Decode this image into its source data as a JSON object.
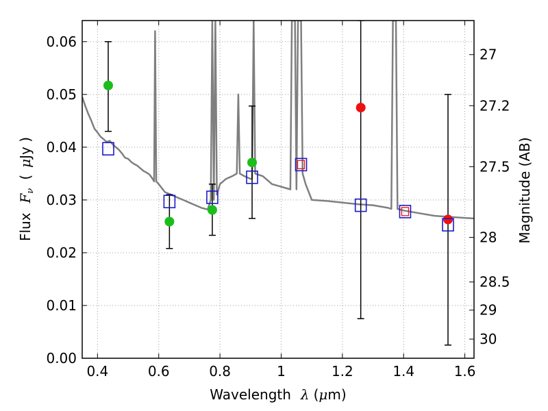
{
  "chart_data": {
    "type": "scatter",
    "title": "",
    "xlabel": {
      "text": "Wavelength",
      "symbol": "λ",
      "unit_open": "(",
      "unit_mu": "μ",
      "unit_rest": "m)"
    },
    "ylabel": {
      "text": "Flux",
      "symbol": "F",
      "subscript": "ν",
      "unit_open": "(",
      "unit_mu": "μ",
      "unit_rest": "Jy )"
    },
    "y2label": "Magnitude (AB)",
    "xlim": [
      0.35,
      1.63
    ],
    "ylim": [
      0.0,
      0.064
    ],
    "grid": true,
    "x_ticks": [
      {
        "value": 0.4,
        "label": "0.4"
      },
      {
        "value": 0.6,
        "label": "0.6"
      },
      {
        "value": 0.8,
        "label": "0.8"
      },
      {
        "value": 1.0,
        "label": "1"
      },
      {
        "value": 1.2,
        "label": "1.2"
      },
      {
        "value": 1.4,
        "label": "1.4"
      },
      {
        "value": 1.6,
        "label": "1.6"
      }
    ],
    "y_ticks": [
      {
        "value": 0.0,
        "label": "0.00"
      },
      {
        "value": 0.01,
        "label": "0.01"
      },
      {
        "value": 0.02,
        "label": "0.02"
      },
      {
        "value": 0.03,
        "label": "0.03"
      },
      {
        "value": 0.04,
        "label": "0.04"
      },
      {
        "value": 0.05,
        "label": "0.05"
      },
      {
        "value": 0.06,
        "label": "0.06"
      }
    ],
    "y2_ticks": [
      {
        "mag": 27,
        "label": "27"
      },
      {
        "mag": 27.2,
        "label": "27.2"
      },
      {
        "mag": 27.5,
        "label": "27.5"
      },
      {
        "mag": 28,
        "label": "28"
      },
      {
        "mag": 28.5,
        "label": "28.5"
      },
      {
        "mag": 29,
        "label": "29"
      },
      {
        "mag": 30,
        "label": "30"
      }
    ],
    "colors": {
      "sed": "#7f7f7f",
      "green_points": "#1bbd1b",
      "red_points": "#ee1111",
      "model_squares": "#1a1acc",
      "red_squares": "#ee1111",
      "errorbars": "#000000",
      "grid": "#999999"
    },
    "sed_model": [
      [
        0.35,
        0.0495
      ],
      [
        0.36,
        0.0478
      ],
      [
        0.37,
        0.0463
      ],
      [
        0.38,
        0.045
      ],
      [
        0.39,
        0.0435
      ],
      [
        0.4,
        0.0428
      ],
      [
        0.41,
        0.042
      ],
      [
        0.42,
        0.0415
      ],
      [
        0.43,
        0.041
      ],
      [
        0.44,
        0.0412
      ],
      [
        0.45,
        0.0405
      ],
      [
        0.46,
        0.04
      ],
      [
        0.47,
        0.0395
      ],
      [
        0.48,
        0.0388
      ],
      [
        0.49,
        0.038
      ],
      [
        0.5,
        0.0378
      ],
      [
        0.51,
        0.0372
      ],
      [
        0.52,
        0.0368
      ],
      [
        0.53,
        0.0365
      ],
      [
        0.54,
        0.036
      ],
      [
        0.55,
        0.0355
      ],
      [
        0.56,
        0.0352
      ],
      [
        0.57,
        0.0348
      ],
      [
        0.58,
        0.034
      ],
      [
        0.585,
        0.0335
      ],
      [
        0.588,
        0.062
      ],
      [
        0.592,
        0.0335
      ],
      [
        0.6,
        0.033
      ],
      [
        0.62,
        0.0315
      ],
      [
        0.64,
        0.031
      ],
      [
        0.66,
        0.0305
      ],
      [
        0.68,
        0.03
      ],
      [
        0.7,
        0.0295
      ],
      [
        0.72,
        0.029
      ],
      [
        0.74,
        0.0285
      ],
      [
        0.76,
        0.0282
      ],
      [
        0.77,
        0.03
      ],
      [
        0.775,
        0.064
      ],
      [
        0.78,
        0.03
      ],
      [
        0.785,
        0.064
      ],
      [
        0.79,
        0.031
      ],
      [
        0.8,
        0.033
      ],
      [
        0.82,
        0.034
      ],
      [
        0.84,
        0.0345
      ],
      [
        0.855,
        0.035
      ],
      [
        0.86,
        0.05
      ],
      [
        0.865,
        0.035
      ],
      [
        0.88,
        0.0345
      ],
      [
        0.9,
        0.034
      ],
      [
        0.905,
        0.034
      ],
      [
        0.91,
        0.064
      ],
      [
        0.915,
        0.035
      ],
      [
        0.94,
        0.0345
      ],
      [
        0.97,
        0.033
      ],
      [
        1.0,
        0.0325
      ],
      [
        1.03,
        0.032
      ],
      [
        1.035,
        0.064
      ],
      [
        1.045,
        0.064
      ],
      [
        1.05,
        0.032
      ],
      [
        1.055,
        0.064
      ],
      [
        1.065,
        0.064
      ],
      [
        1.07,
        0.035
      ],
      [
        1.08,
        0.033
      ],
      [
        1.1,
        0.03
      ],
      [
        1.15,
        0.0298
      ],
      [
        1.2,
        0.0295
      ],
      [
        1.25,
        0.0292
      ],
      [
        1.3,
        0.029
      ],
      [
        1.35,
        0.0285
      ],
      [
        1.36,
        0.0283
      ],
      [
        1.365,
        0.064
      ],
      [
        1.375,
        0.064
      ],
      [
        1.38,
        0.0283
      ],
      [
        1.4,
        0.028
      ],
      [
        1.45,
        0.0275
      ],
      [
        1.5,
        0.027
      ],
      [
        1.55,
        0.0268
      ],
      [
        1.6,
        0.0266
      ],
      [
        1.63,
        0.0265
      ]
    ],
    "series": [
      {
        "marker": "circle",
        "color": "#1bbd1b",
        "points": [
          {
            "x": 0.435,
            "y": 0.0517
          },
          {
            "x": 0.635,
            "y": 0.0259
          },
          {
            "x": 0.775,
            "y": 0.0281
          },
          {
            "x": 0.905,
            "y": 0.0371
          }
        ]
      },
      {
        "marker": "circle",
        "color": "#ee1111",
        "points": [
          {
            "x": 1.26,
            "y": 0.0475
          },
          {
            "x": 1.545,
            "y": 0.0263
          }
        ]
      },
      {
        "marker": "square",
        "color": "#1a1acc",
        "points": [
          {
            "x": 0.435,
            "y": 0.0397
          },
          {
            "x": 0.635,
            "y": 0.0297
          },
          {
            "x": 0.775,
            "y": 0.0305
          },
          {
            "x": 0.905,
            "y": 0.0343
          },
          {
            "x": 1.065,
            "y": 0.0367
          },
          {
            "x": 1.26,
            "y": 0.029
          },
          {
            "x": 1.405,
            "y": 0.0278
          },
          {
            "x": 1.545,
            "y": 0.0253
          }
        ]
      },
      {
        "marker": "square-small",
        "color": "#ee1111",
        "points": [
          {
            "x": 1.065,
            "y": 0.0367
          },
          {
            "x": 1.405,
            "y": 0.0278
          }
        ]
      }
    ],
    "errorbars": [
      {
        "x": 0.435,
        "low": 0.043,
        "high": 0.06
      },
      {
        "x": 0.635,
        "low": 0.0208,
        "high": 0.031
      },
      {
        "x": 0.775,
        "low": 0.0233,
        "high": 0.033
      },
      {
        "x": 0.905,
        "low": 0.0265,
        "high": 0.0478
      },
      {
        "x": 1.26,
        "low": 0.0075,
        "high": 0.064
      },
      {
        "x": 1.545,
        "low": 0.0025,
        "high": 0.05
      }
    ]
  }
}
